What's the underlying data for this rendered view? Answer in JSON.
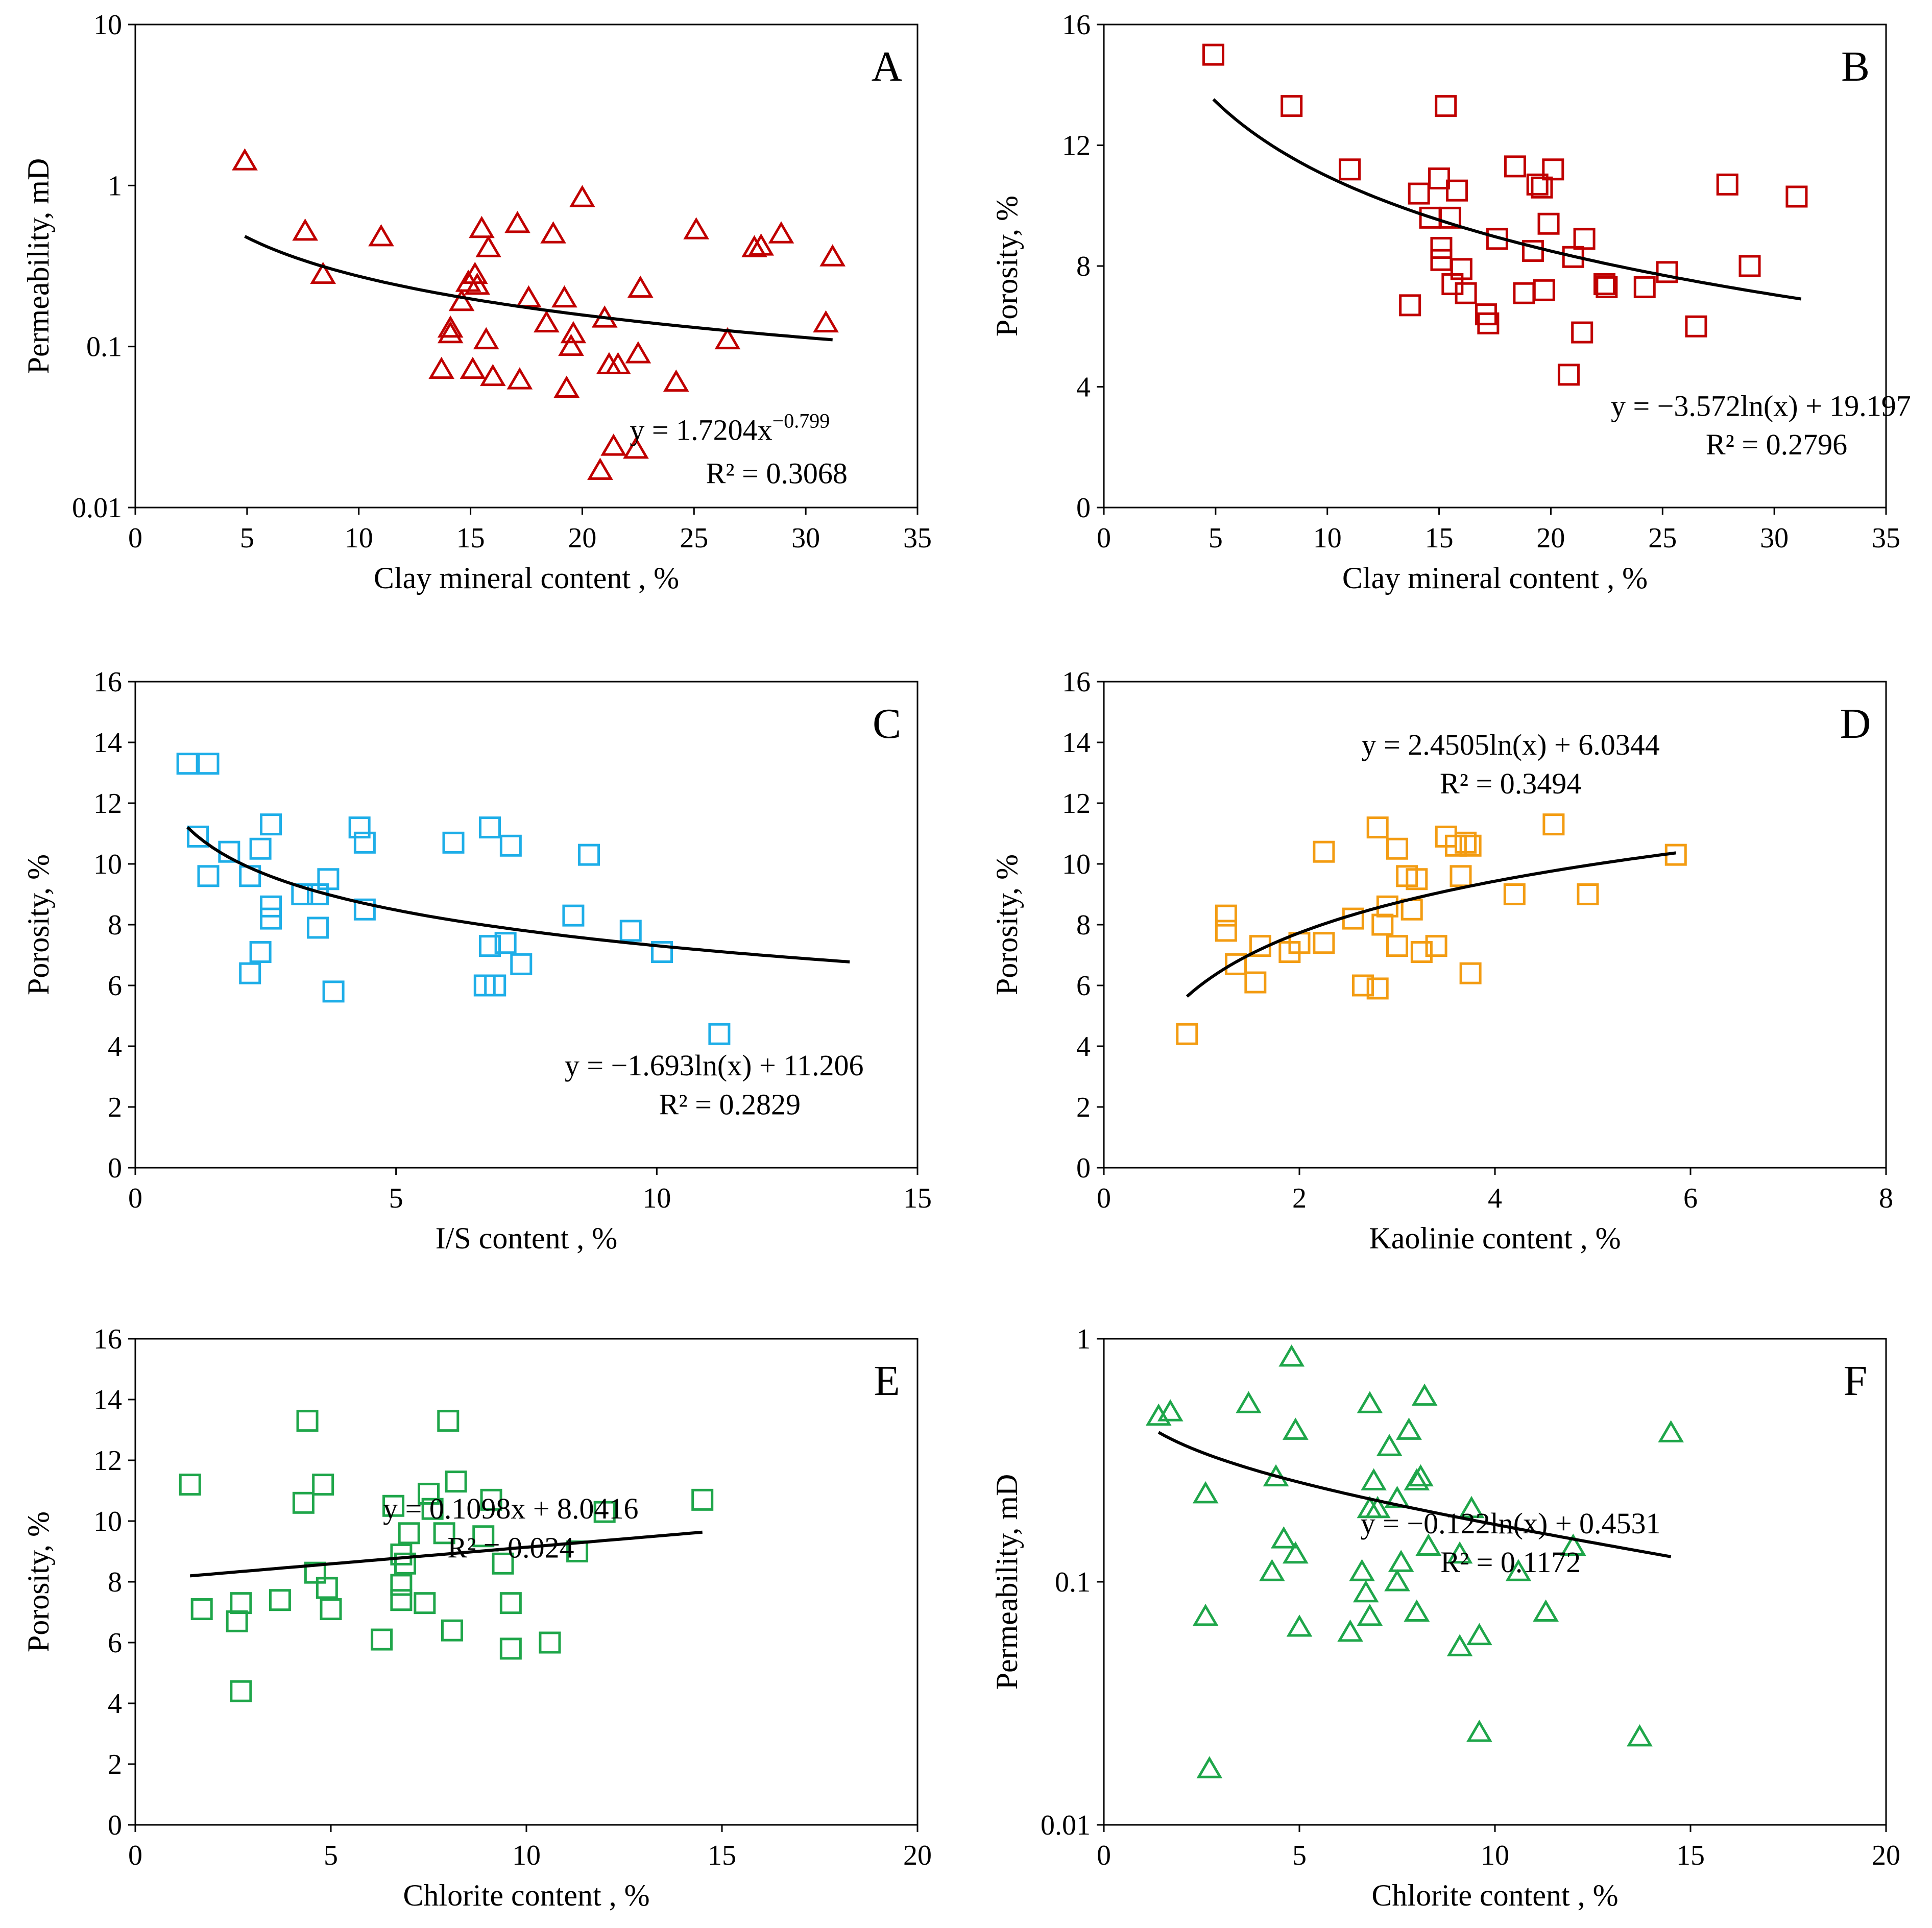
{
  "figure": {
    "panels": [
      "A",
      "B",
      "C",
      "D",
      "E",
      "F"
    ]
  },
  "chart_data": [
    {
      "id": "A",
      "type": "scatter",
      "label": "A",
      "xlabel": "Clay mineral content , %",
      "ylabel": "Permeability, mD",
      "xlim": [
        0,
        35
      ],
      "xticks": [
        0,
        5,
        10,
        15,
        20,
        25,
        30,
        35
      ],
      "ylim": [
        0.01,
        10
      ],
      "yscale": "log",
      "yticks": [
        0.01,
        0.1,
        1,
        10
      ],
      "ytick_labels": [
        "0.01",
        "0.1",
        "1",
        "10"
      ],
      "marker": "triangle",
      "color": "#c00000",
      "equation": "y = 1.7204x",
      "equation_exponent": "−0.799",
      "r2": "R² = 0.3068",
      "trend": {
        "form": "power",
        "a": 1.7204,
        "b": -0.799,
        "xrange": [
          4.9,
          31.2
        ]
      },
      "points": [
        [
          4.9,
          1.42
        ],
        [
          7.6,
          0.52
        ],
        [
          8.4,
          0.28
        ],
        [
          11.0,
          0.48
        ],
        [
          13.7,
          0.072
        ],
        [
          14.1,
          0.13
        ],
        [
          14.1,
          0.12
        ],
        [
          14.6,
          0.19
        ],
        [
          14.9,
          0.25
        ],
        [
          15.1,
          0.072
        ],
        [
          15.2,
          0.28
        ],
        [
          15.3,
          0.24
        ],
        [
          15.5,
          0.54
        ],
        [
          15.7,
          0.11
        ],
        [
          15.8,
          0.41
        ],
        [
          16.0,
          0.065
        ],
        [
          17.1,
          0.58
        ],
        [
          17.2,
          0.062
        ],
        [
          17.6,
          0.2
        ],
        [
          18.4,
          0.14
        ],
        [
          18.7,
          0.5
        ],
        [
          19.2,
          0.2
        ],
        [
          19.3,
          0.055
        ],
        [
          19.5,
          0.1
        ],
        [
          19.6,
          0.12
        ],
        [
          20.0,
          0.84
        ],
        [
          20.8,
          0.017
        ],
        [
          21.0,
          0.15
        ],
        [
          21.2,
          0.077
        ],
        [
          21.4,
          0.024
        ],
        [
          21.6,
          0.077
        ],
        [
          22.4,
          0.023
        ],
        [
          22.5,
          0.09
        ],
        [
          22.6,
          0.23
        ],
        [
          24.2,
          0.06
        ],
        [
          25.1,
          0.53
        ],
        [
          26.5,
          0.11
        ],
        [
          27.7,
          0.41
        ],
        [
          28.0,
          0.42
        ],
        [
          28.9,
          0.5
        ],
        [
          30.9,
          0.14
        ],
        [
          31.2,
          0.36
        ]
      ]
    },
    {
      "id": "B",
      "type": "scatter",
      "label": "B",
      "xlabel": "Clay mineral content , %",
      "ylabel": "Porosity, %",
      "xlim": [
        0,
        35
      ],
      "xticks": [
        0,
        5,
        10,
        15,
        20,
        25,
        30,
        35
      ],
      "ylim": [
        0,
        16
      ],
      "yticks": [
        0,
        4,
        8,
        12,
        16
      ],
      "marker": "square",
      "color": "#c00000",
      "equation": "y = −3.572ln(x) + 19.197",
      "r2": "R² = 0.2796",
      "trend": {
        "form": "log",
        "a": -3.572,
        "b": 19.197,
        "xrange": [
          4.9,
          31.2
        ]
      },
      "points": [
        [
          4.9,
          15.0
        ],
        [
          8.4,
          13.3
        ],
        [
          11.0,
          11.2
        ],
        [
          13.7,
          6.7
        ],
        [
          14.1,
          10.4
        ],
        [
          14.6,
          9.6
        ],
        [
          15.0,
          10.9
        ],
        [
          15.1,
          8.6
        ],
        [
          15.1,
          8.2
        ],
        [
          15.3,
          13.3
        ],
        [
          15.5,
          9.6
        ],
        [
          15.6,
          7.4
        ],
        [
          15.8,
          10.5
        ],
        [
          16.0,
          7.9
        ],
        [
          16.2,
          7.1
        ],
        [
          17.1,
          6.4
        ],
        [
          17.2,
          6.1
        ],
        [
          17.6,
          8.9
        ],
        [
          18.4,
          11.3
        ],
        [
          18.8,
          7.1
        ],
        [
          19.2,
          8.5
        ],
        [
          19.4,
          10.7
        ],
        [
          19.6,
          10.6
        ],
        [
          19.7,
          7.2
        ],
        [
          19.9,
          9.4
        ],
        [
          20.1,
          11.2
        ],
        [
          20.8,
          4.4
        ],
        [
          21.0,
          8.3
        ],
        [
          21.4,
          5.8
        ],
        [
          21.5,
          8.9
        ],
        [
          22.4,
          7.4
        ],
        [
          22.5,
          7.3
        ],
        [
          24.2,
          7.3
        ],
        [
          25.2,
          7.8
        ],
        [
          26.5,
          6.0
        ],
        [
          27.9,
          10.7
        ],
        [
          28.9,
          8.0
        ],
        [
          31.0,
          10.3
        ]
      ]
    },
    {
      "id": "C",
      "type": "scatter",
      "label": "C",
      "xlabel": "I/S content , %",
      "ylabel": "Porosity, %",
      "xlim": [
        0,
        15
      ],
      "xticks": [
        0,
        5,
        10,
        15
      ],
      "ylim": [
        0,
        16
      ],
      "yticks": [
        0,
        2,
        4,
        6,
        8,
        10,
        12,
        14,
        16
      ],
      "marker": "square",
      "color": "#1eaee8",
      "equation": "y = −1.693ln(x) + 11.206",
      "r2": "R² = 0.2829",
      "trend": {
        "form": "log",
        "a": -1.693,
        "b": 11.206,
        "xrange": [
          1.0,
          13.7
        ]
      },
      "points": [
        [
          1.0,
          13.3
        ],
        [
          1.4,
          13.3
        ],
        [
          1.2,
          10.9
        ],
        [
          1.4,
          9.6
        ],
        [
          1.8,
          10.4
        ],
        [
          2.2,
          9.6
        ],
        [
          2.2,
          6.4
        ],
        [
          2.4,
          10.5
        ],
        [
          2.4,
          7.1
        ],
        [
          2.6,
          11.3
        ],
        [
          2.6,
          8.6
        ],
        [
          2.6,
          8.2
        ],
        [
          3.2,
          9.0
        ],
        [
          3.5,
          7.9
        ],
        [
          3.5,
          9.0
        ],
        [
          3.7,
          9.5
        ],
        [
          3.8,
          5.8
        ],
        [
          4.3,
          11.2
        ],
        [
          4.4,
          8.5
        ],
        [
          4.4,
          10.7
        ],
        [
          6.1,
          10.7
        ],
        [
          6.7,
          6.0
        ],
        [
          6.8,
          11.2
        ],
        [
          6.8,
          7.3
        ],
        [
          6.9,
          6.0
        ],
        [
          7.1,
          7.4
        ],
        [
          7.2,
          10.6
        ],
        [
          7.4,
          6.7
        ],
        [
          8.4,
          8.3
        ],
        [
          8.7,
          10.3
        ],
        [
          9.5,
          7.8
        ],
        [
          10.1,
          7.1
        ],
        [
          11.2,
          4.4
        ]
      ]
    },
    {
      "id": "D",
      "type": "scatter",
      "label": "D",
      "xlabel": "Kaolinie content , %",
      "ylabel": "Porosity, %",
      "xlim": [
        0,
        8
      ],
      "xticks": [
        0,
        2,
        4,
        6,
        8
      ],
      "ylim": [
        0,
        16
      ],
      "yticks": [
        0,
        2,
        4,
        6,
        8,
        10,
        12,
        14,
        16
      ],
      "marker": "square",
      "color": "#f39c12",
      "equation": "y = 2.4505ln(x) + 6.0344",
      "r2": "R² = 0.3494",
      "trend": {
        "form": "log",
        "a": 2.4505,
        "b": 6.0344,
        "xrange": [
          0.85,
          5.85
        ]
      },
      "points": [
        [
          0.85,
          4.4
        ],
        [
          1.25,
          8.3
        ],
        [
          1.25,
          7.8
        ],
        [
          1.35,
          6.7
        ],
        [
          1.55,
          6.1
        ],
        [
          1.6,
          7.3
        ],
        [
          1.9,
          7.1
        ],
        [
          2.0,
          7.4
        ],
        [
          2.25,
          7.4
        ],
        [
          2.25,
          10.4
        ],
        [
          2.55,
          8.2
        ],
        [
          2.65,
          6.0
        ],
        [
          2.8,
          11.2
        ],
        [
          2.8,
          5.9
        ],
        [
          2.85,
          8.0
        ],
        [
          2.9,
          8.6
        ],
        [
          3.0,
          7.3
        ],
        [
          3.0,
          10.5
        ],
        [
          3.1,
          9.6
        ],
        [
          3.15,
          8.5
        ],
        [
          3.2,
          9.5
        ],
        [
          3.25,
          7.1
        ],
        [
          3.4,
          7.3
        ],
        [
          3.5,
          10.9
        ],
        [
          3.6,
          10.6
        ],
        [
          3.65,
          9.6
        ],
        [
          3.7,
          10.7
        ],
        [
          3.75,
          10.6
        ],
        [
          3.75,
          6.4
        ],
        [
          4.2,
          9.0
        ],
        [
          4.6,
          11.3
        ],
        [
          4.95,
          9.0
        ],
        [
          5.85,
          10.3
        ]
      ]
    },
    {
      "id": "E",
      "type": "scatter",
      "label": "E",
      "xlabel": "Chlorite content , %",
      "ylabel": "Porosity, %",
      "xlim": [
        0,
        20
      ],
      "xticks": [
        0,
        5,
        10,
        15,
        20
      ],
      "ylim": [
        0,
        16
      ],
      "yticks": [
        0,
        2,
        4,
        6,
        8,
        10,
        12,
        14,
        16
      ],
      "marker": "square",
      "color": "#1fa64a",
      "equation": "y = 0.1098x + 8.0416",
      "r2": "R² = 0.024",
      "trend": {
        "form": "linear",
        "a": 0.1098,
        "b": 8.0416,
        "xrange": [
          1.4,
          14.5
        ]
      },
      "points": [
        [
          1.4,
          11.2
        ],
        [
          1.7,
          7.1
        ],
        [
          2.6,
          6.7
        ],
        [
          2.7,
          4.4
        ],
        [
          2.7,
          7.3
        ],
        [
          3.7,
          7.4
        ],
        [
          4.3,
          10.6
        ],
        [
          4.4,
          13.3
        ],
        [
          4.6,
          8.3
        ],
        [
          4.8,
          11.2
        ],
        [
          4.9,
          7.8
        ],
        [
          5.0,
          7.1
        ],
        [
          6.3,
          6.1
        ],
        [
          6.6,
          10.5
        ],
        [
          6.8,
          7.4
        ],
        [
          6.8,
          7.9
        ],
        [
          6.8,
          8.9
        ],
        [
          6.9,
          8.6
        ],
        [
          7.0,
          9.6
        ],
        [
          7.4,
          7.3
        ],
        [
          7.5,
          10.9
        ],
        [
          7.6,
          10.4
        ],
        [
          7.9,
          9.6
        ],
        [
          8.0,
          13.3
        ],
        [
          8.1,
          6.4
        ],
        [
          8.2,
          11.3
        ],
        [
          8.9,
          9.5
        ],
        [
          9.1,
          10.7
        ],
        [
          9.4,
          8.6
        ],
        [
          9.6,
          7.3
        ],
        [
          9.6,
          5.8
        ],
        [
          10.6,
          6.0
        ],
        [
          11.3,
          9.0
        ],
        [
          12.0,
          10.3
        ],
        [
          14.5,
          10.7
        ]
      ]
    },
    {
      "id": "F",
      "type": "scatter",
      "label": "F",
      "xlabel": "Chlorite content , %",
      "ylabel": "Permeability, mD",
      "xlim": [
        0,
        20
      ],
      "xticks": [
        0,
        5,
        10,
        15,
        20
      ],
      "ylim": [
        0.01,
        1
      ],
      "yscale": "log",
      "yticks": [
        0.01,
        0.1,
        1
      ],
      "ytick_labels": [
        "0.01",
        "0.1",
        "1"
      ],
      "marker": "triangle",
      "color": "#1fa64a",
      "equation": "y = −0.122ln(x) + 0.4531",
      "r2": "R² = 0.1172",
      "trend": {
        "form": "log",
        "a": -0.122,
        "b": 0.4531,
        "xrange": [
          1.4,
          14.5
        ]
      },
      "points": [
        [
          1.4,
          0.48
        ],
        [
          1.7,
          0.5
        ],
        [
          2.6,
          0.23
        ],
        [
          2.6,
          0.072
        ],
        [
          2.7,
          0.017
        ],
        [
          3.7,
          0.54
        ],
        [
          4.3,
          0.11
        ],
        [
          4.4,
          0.27
        ],
        [
          4.6,
          0.15
        ],
        [
          4.8,
          0.84
        ],
        [
          4.9,
          0.42
        ],
        [
          4.9,
          0.13
        ],
        [
          5.0,
          0.065
        ],
        [
          6.3,
          0.062
        ],
        [
          6.6,
          0.11
        ],
        [
          6.7,
          0.09
        ],
        [
          6.8,
          0.54
        ],
        [
          6.8,
          0.2
        ],
        [
          6.8,
          0.072
        ],
        [
          6.9,
          0.26
        ],
        [
          7.0,
          0.2
        ],
        [
          7.3,
          0.36
        ],
        [
          7.5,
          0.22
        ],
        [
          7.5,
          0.1
        ],
        [
          7.6,
          0.12
        ],
        [
          7.8,
          0.42
        ],
        [
          8.0,
          0.26
        ],
        [
          8.0,
          0.075
        ],
        [
          8.1,
          0.27
        ],
        [
          8.2,
          0.58
        ],
        [
          8.3,
          0.14
        ],
        [
          9.1,
          0.054
        ],
        [
          9.1,
          0.13
        ],
        [
          9.4,
          0.2
        ],
        [
          9.6,
          0.06
        ],
        [
          9.6,
          0.024
        ],
        [
          10.6,
          0.11
        ],
        [
          11.3,
          0.075
        ],
        [
          12.0,
          0.14
        ],
        [
          13.7,
          0.023
        ],
        [
          14.5,
          0.41
        ]
      ]
    }
  ]
}
